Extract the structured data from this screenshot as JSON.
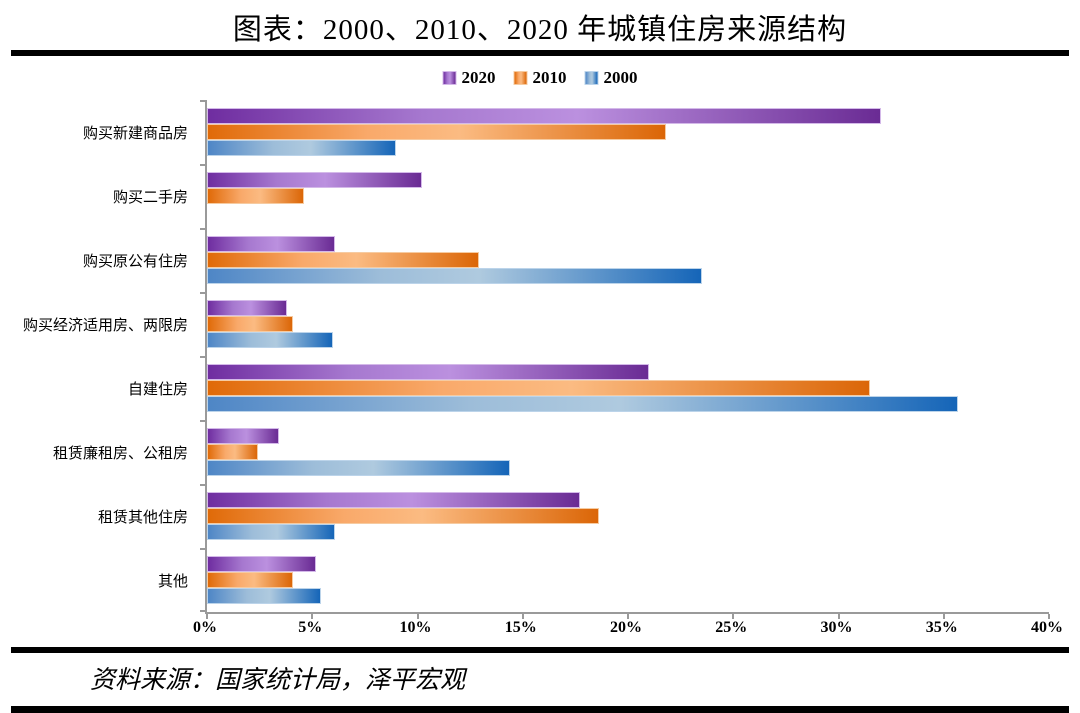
{
  "title": "图表：2000、2010、2020 年城镇住房来源结构",
  "source": "资料来源：国家统计局，泽平宏观",
  "chart_data": {
    "type": "bar",
    "orientation": "horizontal",
    "title": "图表：2000、2010、2020 年城镇住房来源结构",
    "categories": [
      "购买新建商品房",
      "购买二手房",
      "购买原公有住房",
      "购买经济适用房、两限房",
      "自建住房",
      "租赁廉租房、公租房",
      "租赁其他住房",
      "其他"
    ],
    "series": [
      {
        "name": "2020",
        "color": "#7030A0",
        "values": [
          32.0,
          10.2,
          6.1,
          3.8,
          21.0,
          3.4,
          17.7,
          5.2
        ]
      },
      {
        "name": "2010",
        "color": "#E36C0A",
        "values": [
          21.8,
          4.6,
          12.9,
          4.1,
          31.5,
          2.4,
          18.6,
          4.1
        ]
      },
      {
        "name": "2000",
        "color": "#2E75B6",
        "values": [
          9.0,
          0,
          23.5,
          6.0,
          35.7,
          14.4,
          6.1,
          5.4
        ]
      }
    ],
    "unit": "%",
    "xlim": [
      0,
      40
    ],
    "x_ticks": [
      "0%",
      "5%",
      "10%",
      "15%",
      "20%",
      "25%",
      "30%",
      "35%",
      "40%"
    ],
    "grid": false,
    "legend_position": "top-center",
    "bar_order": "2020 top, 2010 middle, 2000 bottom in each group"
  }
}
